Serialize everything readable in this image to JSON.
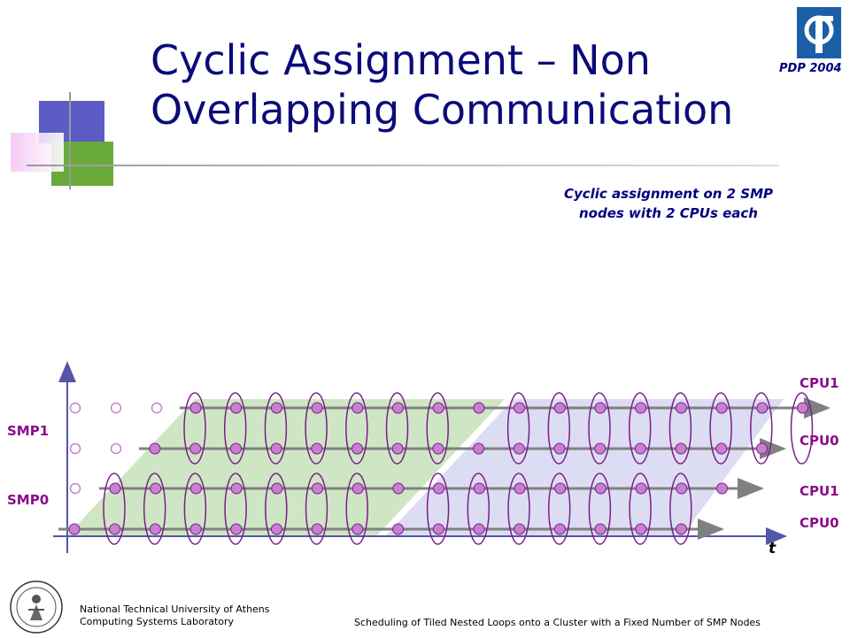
{
  "title": {
    "line1": "Cyclic Assignment – Non",
    "line2": "Overlapping Communication"
  },
  "conference": "PDP 2004",
  "caption": {
    "line1": "Cyclic assignment on 2 SMP",
    "line2": "nodes with 2 CPUs each"
  },
  "left_labels": {
    "smp1": "SMP1",
    "smp0": "SMP0"
  },
  "right_labels": {
    "r1": "CPU1",
    "r2": "CPU0",
    "r3": "CPU1",
    "r4": "CPU0"
  },
  "axis_label": "t",
  "footer": {
    "institution_line1": "National Technical University of Athens",
    "institution_line2": "Computing Systems Laboratory",
    "paper_title": "Scheduling of Tiled Nested Loops onto a Cluster with a Fixed Number of SMP Nodes"
  },
  "colors": {
    "title": "#0b0b7a",
    "cpu_label": "#8b0b8b",
    "node_fill": "#c87fd0",
    "node_stroke": "#7a1f8a",
    "green_region": "#cfe6c4",
    "lavender_region": "#dcdcf2",
    "arrow": "#808080",
    "axis": "#5555aa"
  },
  "icons": {
    "top_right_logo": "university-logo-icon",
    "bottom_left_seal": "ntua-seal-icon"
  }
}
